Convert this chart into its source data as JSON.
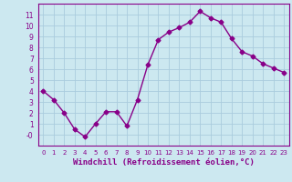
{
  "x": [
    0,
    1,
    2,
    3,
    4,
    5,
    6,
    7,
    8,
    9,
    10,
    11,
    12,
    13,
    14,
    15,
    16,
    17,
    18,
    19,
    20,
    21,
    22,
    23
  ],
  "y": [
    4.0,
    3.2,
    2.0,
    0.5,
    -0.2,
    1.0,
    2.1,
    2.1,
    0.8,
    3.2,
    6.4,
    8.7,
    9.4,
    9.8,
    10.3,
    11.3,
    10.7,
    10.3,
    8.8,
    7.6,
    7.2,
    6.5,
    6.1,
    5.7
  ],
  "line_color": "#880088",
  "marker": "D",
  "marker_size": 2.5,
  "linewidth": 1.0,
  "xlabel": "Windchill (Refroidissement éolien,°C)",
  "xlabel_fontsize": 6.5,
  "bg_color": "#cce8f0",
  "grid_color": "#aaccdd",
  "tick_color": "#880088",
  "label_color": "#880088",
  "ylim": [
    -1,
    12
  ],
  "xlim": [
    -0.5,
    23.5
  ],
  "yticks": [
    0,
    1,
    2,
    3,
    4,
    5,
    6,
    7,
    8,
    9,
    10,
    11
  ],
  "ytick_labels": [
    "-0",
    "1",
    "2",
    "3",
    "4",
    "5",
    "6",
    "7",
    "8",
    "9",
    "10",
    "11"
  ],
  "xticks": [
    0,
    1,
    2,
    3,
    4,
    5,
    6,
    7,
    8,
    9,
    10,
    11,
    12,
    13,
    14,
    15,
    16,
    17,
    18,
    19,
    20,
    21,
    22,
    23
  ]
}
